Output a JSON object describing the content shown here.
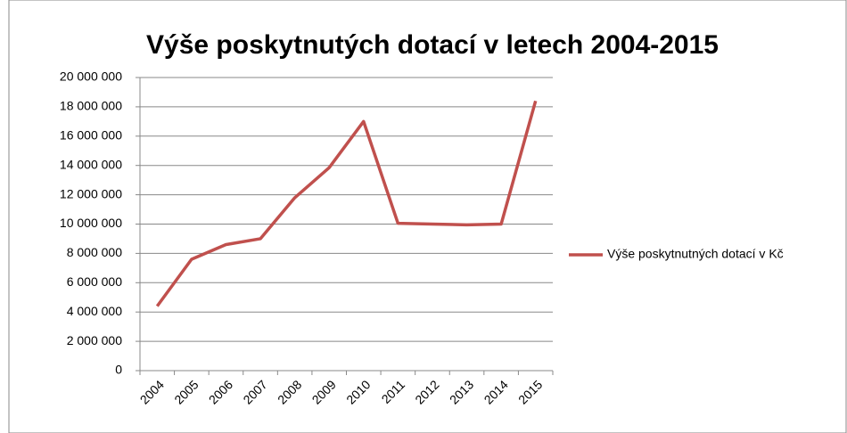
{
  "chart_data": {
    "type": "line",
    "title": "Výše poskytnutých dotací v letech 2004-2015",
    "categories": [
      "2004",
      "2005",
      "2006",
      "2007",
      "2008",
      "2009",
      "2010",
      "2011",
      "2012",
      "2013",
      "2014",
      "2015"
    ],
    "series": [
      {
        "name": "Výše poskytnutných dotací v Kč",
        "color": "#c0504d",
        "values": [
          4400000,
          7600000,
          8600000,
          9000000,
          11800000,
          13850000,
          17000000,
          10050000,
          10000000,
          9950000,
          10000000,
          18400000
        ]
      }
    ],
    "ylim": [
      0,
      20000000
    ],
    "yticks": [
      {
        "value": 0,
        "label": "0"
      },
      {
        "value": 2000000,
        "label": "2 000 000"
      },
      {
        "value": 4000000,
        "label": "4 000 000"
      },
      {
        "value": 6000000,
        "label": "6 000 000"
      },
      {
        "value": 8000000,
        "label": "8 000 000"
      },
      {
        "value": 10000000,
        "label": "10 000 000"
      },
      {
        "value": 12000000,
        "label": "12 000 000"
      },
      {
        "value": 14000000,
        "label": "14 000 000"
      },
      {
        "value": 16000000,
        "label": "16 000 000"
      },
      {
        "value": 18000000,
        "label": "18 000 000"
      },
      {
        "value": 20000000,
        "label": "20 000 000"
      }
    ],
    "grid": true,
    "legend": "right"
  }
}
